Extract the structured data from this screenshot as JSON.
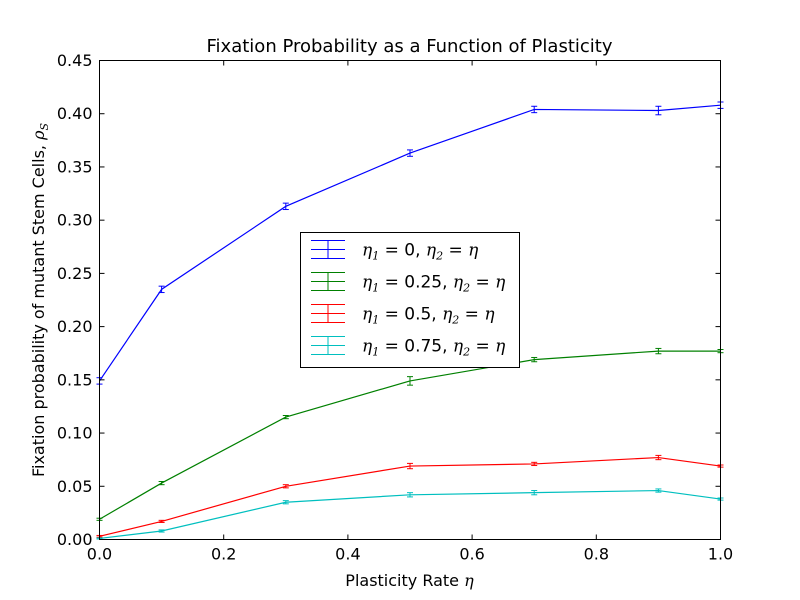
{
  "chart_data": {
    "type": "line",
    "title": "Fixation Probability as a Function of Plasticity",
    "xlabel": "Plasticity Rate η",
    "ylabel": "Fixation probability of mutant Stem Cells, ρS",
    "xlim": [
      0.0,
      1.0
    ],
    "ylim": [
      0.0,
      0.45
    ],
    "xticks": [
      "0.0",
      "0.2",
      "0.4",
      "0.6",
      "0.8",
      "1.0"
    ],
    "yticks": [
      "0.00",
      "0.05",
      "0.10",
      "0.15",
      "0.20",
      "0.25",
      "0.30",
      "0.35",
      "0.40",
      "0.45"
    ],
    "grid": false,
    "legend_position": "center",
    "x": [
      0.0,
      0.1,
      0.3,
      0.5,
      0.7,
      0.9,
      1.0
    ],
    "series": [
      {
        "name": "η1 = 0, η2 = η",
        "color": "#0000ff",
        "values": [
          0.149,
          0.235,
          0.313,
          0.363,
          0.404,
          0.403,
          0.408
        ],
        "errors": [
          0.003,
          0.003,
          0.003,
          0.003,
          0.003,
          0.004,
          0.003
        ]
      },
      {
        "name": "η1 = 0.25, η2 = η",
        "color": "#008000",
        "values": [
          0.019,
          0.053,
          0.115,
          0.149,
          0.169,
          0.177,
          0.177
        ],
        "errors": [
          0.001,
          0.0015,
          0.0015,
          0.004,
          0.002,
          0.0025,
          0.0015
        ]
      },
      {
        "name": "η1 = 0.5, η2 = η",
        "color": "#ff0000",
        "values": [
          0.003,
          0.017,
          0.05,
          0.069,
          0.071,
          0.077,
          0.069
        ],
        "errors": [
          0.0008,
          0.001,
          0.0015,
          0.0025,
          0.0015,
          0.002,
          0.001
        ]
      },
      {
        "name": "η1 = 0.75, η2 = η",
        "color": "#00bfbf",
        "values": [
          0.001,
          0.008,
          0.035,
          0.042,
          0.044,
          0.046,
          0.038
        ],
        "errors": [
          0.0005,
          0.001,
          0.0015,
          0.002,
          0.002,
          0.0015,
          0.001
        ]
      }
    ],
    "legend": [
      {
        "sub1": "1",
        "val1": "0",
        "sub2": "2",
        "eta": "η"
      },
      {
        "sub1": "1",
        "val1": "0.25",
        "sub2": "2",
        "eta": "η"
      },
      {
        "sub1": "1",
        "val1": "0.5",
        "sub2": "2",
        "eta": "η"
      },
      {
        "sub1": "1",
        "val1": "0.75",
        "sub2": "2",
        "eta": "η"
      }
    ]
  }
}
